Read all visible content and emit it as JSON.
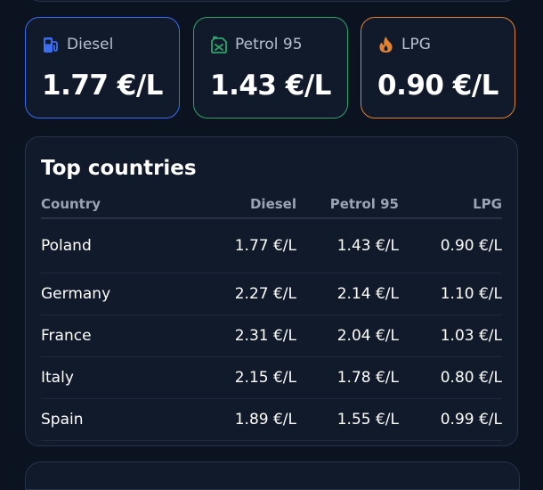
{
  "fuels": [
    {
      "label": "Diesel",
      "price": "1.77 €/L",
      "icon": "fuel-pump-icon",
      "color": "#3b6df0"
    },
    {
      "label": "Petrol 95",
      "price": "1.43 €/L",
      "icon": "jerrycan-icon",
      "color": "#2ea36a"
    },
    {
      "label": "LPG",
      "price": "0.90 €/L",
      "icon": "flame-icon",
      "color": "#e0822e"
    }
  ],
  "top_countries": {
    "title": "Top countries",
    "columns": [
      "Country",
      "Diesel",
      "Petrol 95",
      "LPG"
    ],
    "rows": [
      [
        "Poland",
        "1.77 €/L",
        "1.43 €/L",
        "0.90 €/L"
      ],
      [
        "Germany",
        "2.27 €/L",
        "2.14 €/L",
        "1.10 €/L"
      ],
      [
        "France",
        "2.31 €/L",
        "2.04 €/L",
        "1.03 €/L"
      ],
      [
        "Italy",
        "2.15 €/L",
        "1.78 €/L",
        "0.80 €/L"
      ],
      [
        "Spain",
        "1.89 €/L",
        "1.55 €/L",
        "0.99 €/L"
      ]
    ]
  }
}
